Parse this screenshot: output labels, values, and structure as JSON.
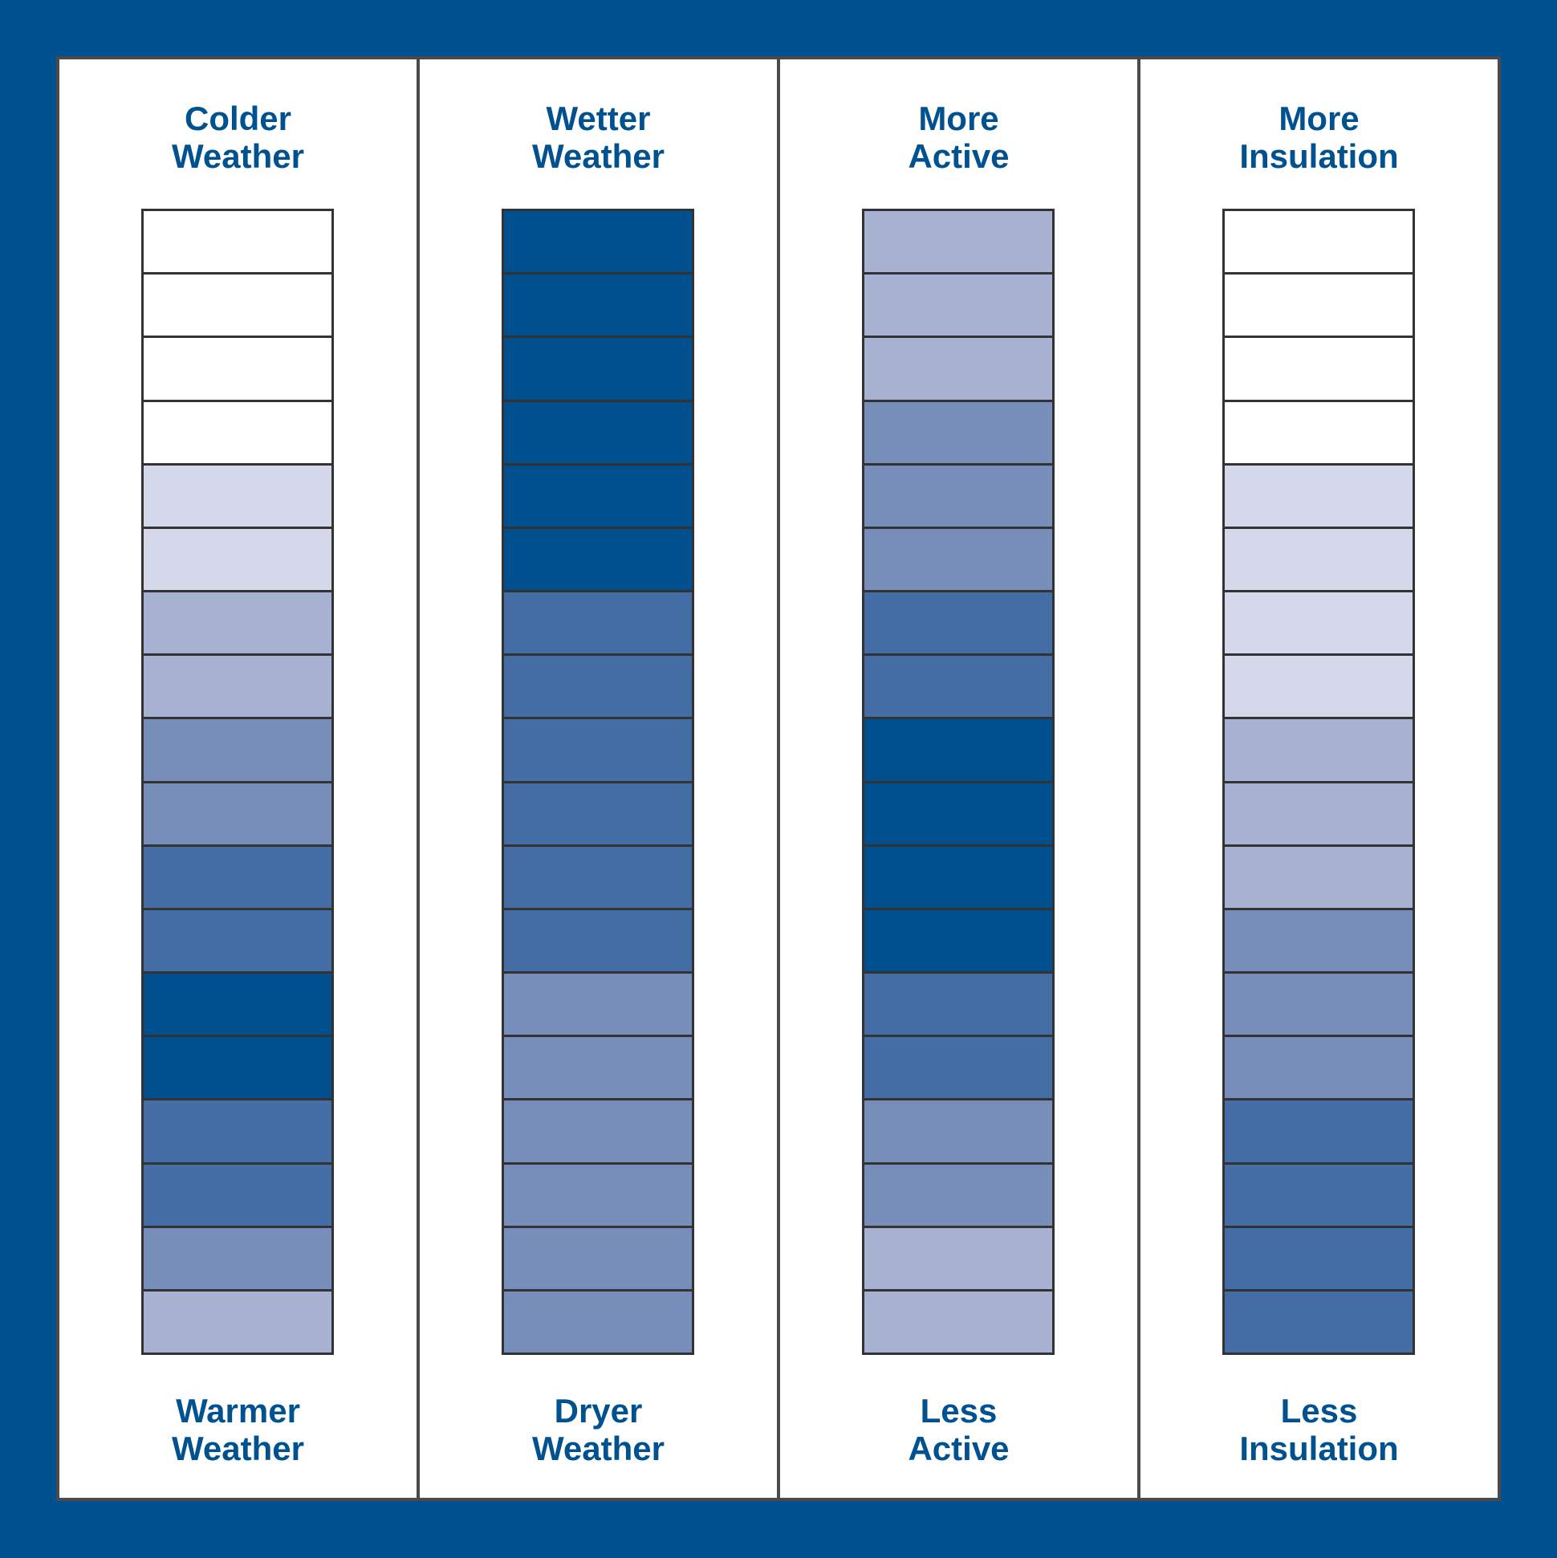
{
  "colors": {
    "frame": "#00518f",
    "text": "#00518f",
    "panel_bg": "#ffffff",
    "outline": "#333333",
    "shades": [
      "#ffffff",
      "#d5d8ea",
      "#a7b2d2",
      "#788eba",
      "#436da4",
      "#00508f"
    ]
  },
  "columns": [
    {
      "top_label": [
        "Colder",
        "Weather"
      ],
      "bottom_label": [
        "Warmer",
        "Weather"
      ],
      "levels": [
        0,
        0,
        0,
        0,
        1,
        1,
        2,
        2,
        3,
        3,
        4,
        4,
        5,
        5,
        4,
        4,
        3,
        2
      ]
    },
    {
      "top_label": [
        "Wetter",
        "Weather"
      ],
      "bottom_label": [
        "Dryer",
        "Weather"
      ],
      "levels": [
        5,
        5,
        5,
        5,
        5,
        5,
        4,
        4,
        4,
        4,
        4,
        4,
        3,
        3,
        3,
        3,
        3,
        3
      ]
    },
    {
      "top_label": [
        "More",
        "Active"
      ],
      "bottom_label": [
        "Less",
        "Active"
      ],
      "levels": [
        2,
        2,
        2,
        3,
        3,
        3,
        4,
        4,
        5,
        5,
        5,
        5,
        4,
        4,
        3,
        3,
        2,
        2
      ]
    },
    {
      "top_label": [
        "More",
        "Insulation"
      ],
      "bottom_label": [
        "Less",
        "Insulation"
      ],
      "levels": [
        0,
        0,
        0,
        0,
        1,
        1,
        1,
        1,
        2,
        2,
        2,
        3,
        3,
        3,
        4,
        4,
        4,
        4
      ]
    }
  ]
}
